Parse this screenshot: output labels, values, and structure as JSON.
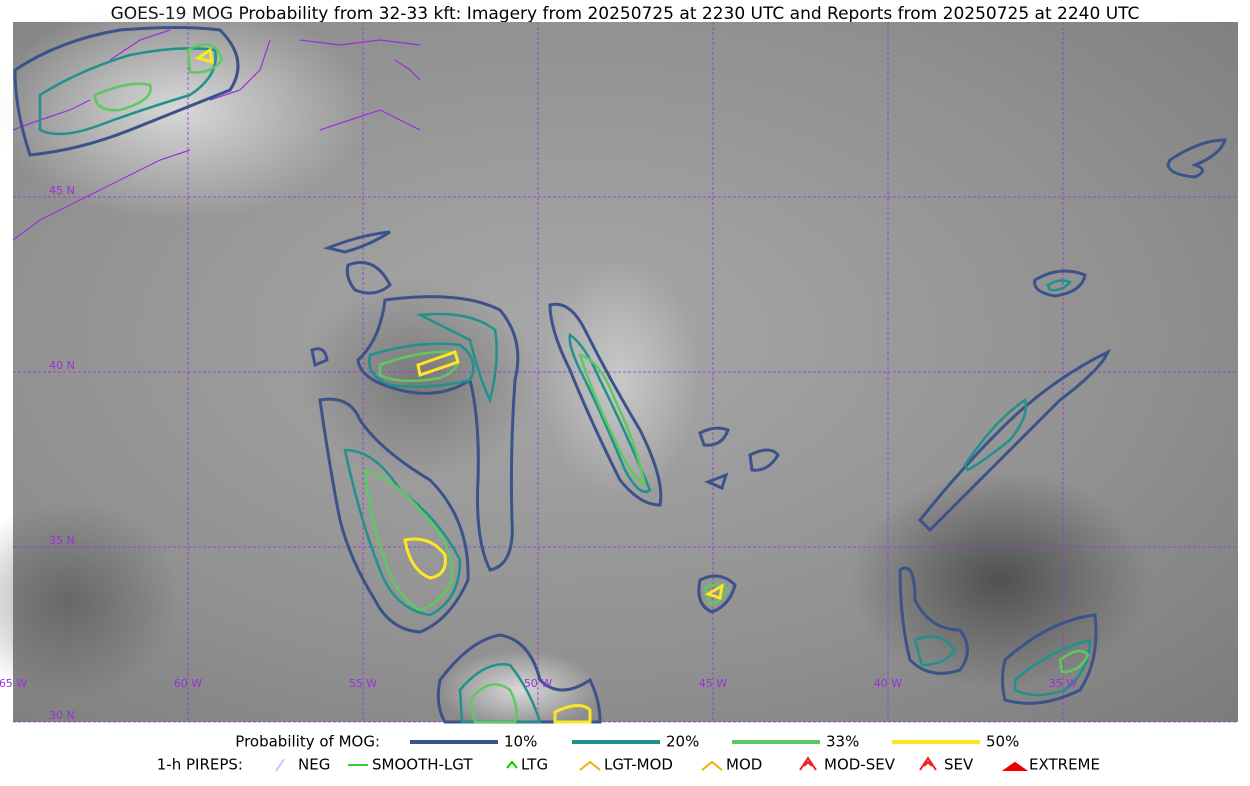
{
  "title": "GOES-19 MOG Probability from 32-33 kft: Imagery from 20250725 at 2230 UTC and Reports from 20250725 at 2240 UTC",
  "map": {
    "lat_labels": [
      "45 N",
      "40 N",
      "35 N",
      "30 N"
    ],
    "lon_labels": [
      "65 W",
      "60 W",
      "55 W",
      "50 W",
      "45 W",
      "40 W",
      "35 W"
    ]
  },
  "legend": {
    "probability_title": "Probability of MOG:",
    "probability_levels": [
      "10%",
      "20%",
      "33%",
      "50%"
    ],
    "pireps_title": "1-h PIREPS:",
    "pireps": [
      "NEG",
      "SMOOTH-LGT",
      "LTG",
      "LGT-MOD",
      "MOD",
      "MOD-SEV",
      "SEV",
      "EXTREME"
    ]
  }
}
